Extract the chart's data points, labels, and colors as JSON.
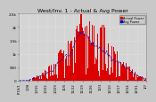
{
  "title": "West/Inv. 1 - Actual & Avg Power",
  "bg_color": "#c8c8c8",
  "plot_bg_color": "#d4d4d4",
  "bar_color": "#dd0000",
  "bar_edge_color": "#dd0000",
  "avg_line_color": "#0000cc",
  "grid_color": "#ffffff",
  "text_color": "#000000",
  "title_color": "#000000",
  "ylim_max": 2500,
  "num_bars": 130,
  "y_ticks": [
    0,
    500,
    1000,
    1500,
    2000,
    2500
  ],
  "y_labels": [
    "0",
    "500",
    "1k",
    "1.5k",
    "2k",
    "2.5k"
  ],
  "x_labels": [
    "P:10/1",
    "10/8",
    "10/15",
    "10/22",
    "10/29",
    "11/5",
    "11/12",
    "11/19",
    "11/26",
    "12/3",
    "12/10",
    "12/17",
    "12/24",
    "12/31",
    "1/7"
  ],
  "legend_labels": [
    "Actual Power",
    "Avg Power"
  ],
  "legend_colors": [
    "#dd0000",
    "#ff4444"
  ],
  "avg_legend_color": "#0000cc",
  "title_fontsize": 4.5,
  "axis_fontsize": 3.0
}
